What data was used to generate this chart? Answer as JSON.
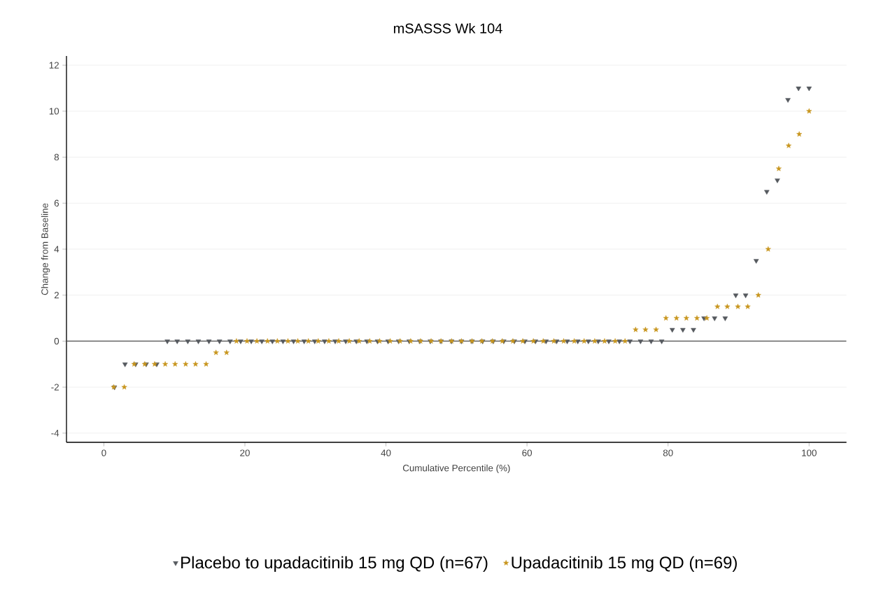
{
  "chart_data": {
    "type": "scatter",
    "title": "mSASSS Wk 104",
    "xlabel": "Cumulative Percentile (%)",
    "ylabel": "Change from Baseline",
    "xlim": [
      -5.3,
      105.3
    ],
    "ylim": [
      -4.4,
      12.4
    ],
    "xticks": [
      0,
      20,
      40,
      60,
      80,
      100
    ],
    "yticks": [
      -4,
      -2,
      0,
      2,
      4,
      6,
      8,
      10,
      12
    ],
    "grid": "y",
    "legend": "bottom",
    "ref_lines": [
      {
        "axis": "y",
        "value": 0,
        "color": "#505050"
      }
    ],
    "series": [
      {
        "name": "Placebo to upadacitinib 15 mg QD (n=67)",
        "color": "#55595e",
        "marker": "triangle",
        "x": [
          1.5,
          3.0,
          4.5,
          6.0,
          7.5,
          9.0,
          10.4,
          11.9,
          13.4,
          14.9,
          16.4,
          17.9,
          19.4,
          20.9,
          22.4,
          23.9,
          25.4,
          26.9,
          28.4,
          29.9,
          31.3,
          32.8,
          34.3,
          35.8,
          37.3,
          38.8,
          40.3,
          41.8,
          43.3,
          44.8,
          46.3,
          47.8,
          49.3,
          50.7,
          52.2,
          53.7,
          55.2,
          56.7,
          58.2,
          59.7,
          61.2,
          62.7,
          64.2,
          65.7,
          67.2,
          68.7,
          70.1,
          71.6,
          73.1,
          74.6,
          76.1,
          77.6,
          79.1,
          80.6,
          82.1,
          83.6,
          85.1,
          86.6,
          88.1,
          89.6,
          91.0,
          92.5,
          94.0,
          95.5,
          97.0,
          98.5,
          100.0
        ],
        "values": [
          -2,
          -1,
          -1,
          -1,
          -1,
          0,
          0,
          0,
          0,
          0,
          0,
          0,
          0,
          0,
          0,
          0,
          0,
          0,
          0,
          0,
          0,
          0,
          0,
          0,
          0,
          0,
          0,
          0,
          0,
          0,
          0,
          0,
          0,
          0,
          0,
          0,
          0,
          0,
          0,
          0,
          0,
          0,
          0,
          0,
          0,
          0,
          0,
          0,
          0,
          0,
          0,
          0,
          0,
          0.5,
          0.5,
          0.5,
          1,
          1,
          1,
          2,
          2,
          3.5,
          6.5,
          7,
          10.5,
          11,
          11
        ]
      },
      {
        "name": "Upadacitinib 15 mg QD (n=69)",
        "color": "#c8961e",
        "marker": "star",
        "x": [
          1.4,
          2.9,
          4.3,
          5.8,
          7.2,
          8.7,
          10.1,
          11.6,
          13.0,
          14.5,
          15.9,
          17.4,
          18.8,
          20.3,
          21.7,
          23.2,
          24.6,
          26.1,
          27.5,
          29.0,
          30.4,
          31.9,
          33.3,
          34.8,
          36.2,
          37.7,
          39.1,
          40.6,
          42.0,
          43.5,
          44.9,
          46.4,
          47.8,
          49.3,
          50.7,
          52.2,
          53.6,
          55.1,
          56.5,
          58.0,
          59.4,
          60.9,
          62.3,
          63.8,
          65.2,
          66.7,
          68.1,
          69.6,
          71.0,
          72.5,
          73.9,
          75.4,
          76.8,
          78.3,
          79.7,
          81.2,
          82.6,
          84.1,
          85.5,
          87.0,
          88.4,
          89.9,
          91.3,
          92.8,
          94.2,
          95.7,
          97.1,
          98.6,
          100.0
        ],
        "values": [
          -2,
          -2,
          -1,
          -1,
          -1,
          -1,
          -1,
          -1,
          -1,
          -1,
          -0.5,
          -0.5,
          0,
          0,
          0,
          0,
          0,
          0,
          0,
          0,
          0,
          0,
          0,
          0,
          0,
          0,
          0,
          0,
          0,
          0,
          0,
          0,
          0,
          0,
          0,
          0,
          0,
          0,
          0,
          0,
          0,
          0,
          0,
          0,
          0,
          0,
          0,
          0,
          0,
          0,
          0,
          0.5,
          0.5,
          0.5,
          1,
          1,
          1,
          1,
          1,
          1.5,
          1.5,
          1.5,
          1.5,
          2,
          4,
          7.5,
          8.5,
          9,
          10
        ]
      }
    ]
  }
}
